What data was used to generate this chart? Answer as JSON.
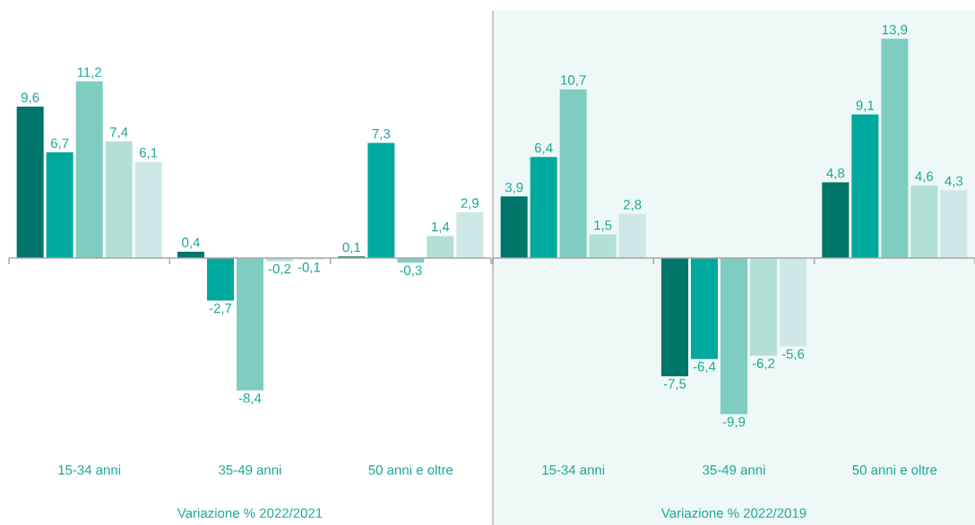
{
  "chart_data": [
    {
      "type": "bar",
      "categories": [
        "15-34 anni",
        "35-49 anni",
        "50 anni e oltre"
      ],
      "xlabel": "Variazione % 2022/2021",
      "tick_labels": "x",
      "series": [
        {
          "color": "#00756a",
          "values": [
            9.6,
            0.4,
            0.1
          ],
          "value_labels": [
            "9,6",
            "0,4",
            "0,1"
          ]
        },
        {
          "color": "#00a99d",
          "values": [
            6.7,
            -2.7,
            7.3
          ],
          "value_labels": [
            "6,7",
            "-2,7",
            "7,3"
          ]
        },
        {
          "color": "#7ecdc0",
          "values": [
            11.2,
            -8.4,
            -0.3
          ],
          "value_labels": [
            "11,2",
            "-8,4",
            "-0,3"
          ]
        },
        {
          "color": "#b3e0d6",
          "values": [
            7.4,
            -0.2,
            1.4
          ],
          "value_labels": [
            "7,4",
            "-0,2",
            "1,4"
          ]
        },
        {
          "color": "#cde8e6",
          "values": [
            6.1,
            -0.1,
            2.9
          ],
          "value_labels": [
            "6,1",
            "-0,1",
            "2,9"
          ]
        }
      ]
    },
    {
      "type": "bar",
      "categories": [
        "15-34 anni",
        "35-49 anni",
        "50 anni e oltre"
      ],
      "xlabel": "Variazione % 2022/2019",
      "tick_labels": "x",
      "series": [
        {
          "color": "#00756a",
          "values": [
            3.9,
            -7.5,
            4.8
          ],
          "value_labels": [
            "3,9",
            "-7,5",
            "4,8"
          ]
        },
        {
          "color": "#00a99d",
          "values": [
            6.4,
            -6.4,
            9.1
          ],
          "value_labels": [
            "6,4",
            "-6,4",
            "9,1"
          ]
        },
        {
          "color": "#7ecdc0",
          "values": [
            10.7,
            -9.9,
            13.9
          ],
          "value_labels": [
            "10,7",
            "-9,9",
            "13,9"
          ]
        },
        {
          "color": "#b3e0d6",
          "values": [
            1.5,
            -6.2,
            4.6
          ],
          "value_labels": [
            "1,5",
            "-6,2",
            "4,6"
          ]
        },
        {
          "color": "#cde8e6",
          "values": [
            2.8,
            -5.6,
            4.3
          ],
          "value_labels": [
            "2,8",
            "-5,6",
            "4,3"
          ]
        }
      ]
    }
  ]
}
